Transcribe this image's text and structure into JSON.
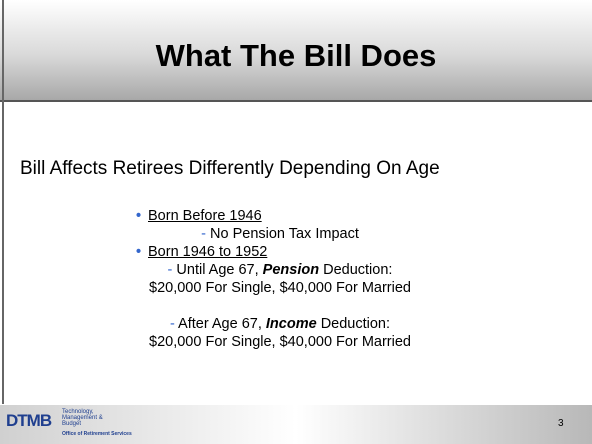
{
  "title": "What The Bill Does",
  "intro": "Bill Affects Retirees Differently Depending On Age",
  "bullets": [
    {
      "heading": "Born Before 1946",
      "items": [
        {
          "dash": "-",
          "lines": [
            [
              {
                "text": "No Pension Tax Impact"
              }
            ]
          ]
        }
      ]
    },
    {
      "heading": "Born 1946 to 1952",
      "items": [
        {
          "dash": "-",
          "lines": [
            [
              {
                "text": "Until Age 67, "
              },
              {
                "text": "Pension",
                "strong": true
              },
              {
                "text": " Deduction:"
              }
            ],
            [
              {
                "text": "$20,000 For Single, $40,000 For Married"
              }
            ]
          ]
        },
        {
          "dash": "-",
          "lines": [
            [
              {
                "text": "After Age 67, "
              },
              {
                "text": "Income",
                "strong": true
              },
              {
                "text": " Deduction:"
              }
            ],
            [
              {
                "text": "$20,000 For Single, $40,000 For Married"
              }
            ]
          ]
        }
      ]
    }
  ],
  "footer": {
    "logo": "DTMB",
    "department": [
      "Technology,",
      "Management &",
      "Budget"
    ],
    "office": "Office of Retirement Services",
    "page": "3"
  }
}
